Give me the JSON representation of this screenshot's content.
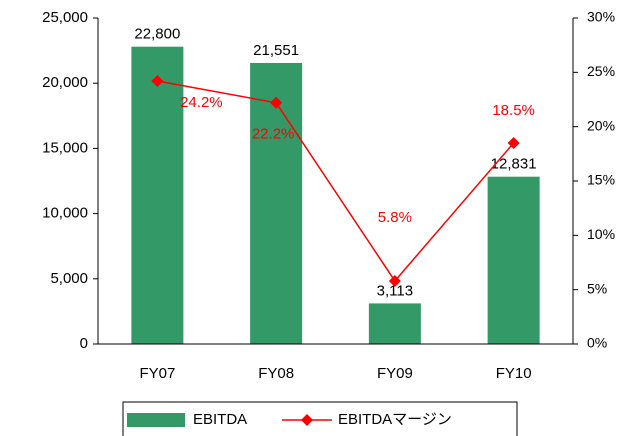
{
  "chart_data": {
    "type": "bar",
    "categories": [
      "FY07",
      "FY08",
      "FY09",
      "FY10"
    ],
    "series": [
      {
        "name": "EBITDA",
        "type": "bar",
        "color": "#339966",
        "values": [
          22800,
          21551,
          3113,
          12831
        ],
        "value_labels": [
          "22,800",
          "21,551",
          "3,113",
          "12,831"
        ]
      },
      {
        "name": "EBITDAマージン",
        "type": "line",
        "axis": "y2",
        "color": "#ff0000",
        "values": [
          24.2,
          22.2,
          5.8,
          18.5
        ],
        "value_labels": [
          "24.2%",
          "22.2%",
          "5.8%",
          "18.5%"
        ]
      }
    ],
    "ylim": [
      0,
      25000
    ],
    "yticks": [
      {
        "value": 0,
        "label": "0"
      },
      {
        "value": 5000,
        "label": "5,000"
      },
      {
        "value": 10000,
        "label": "10,000"
      },
      {
        "value": 15000,
        "label": "15,000"
      },
      {
        "value": 20000,
        "label": "20,000"
      },
      {
        "value": 25000,
        "label": "25,000"
      }
    ],
    "y2lim": [
      0,
      30
    ],
    "y2ticks": [
      {
        "value": 0,
        "label": "0%"
      },
      {
        "value": 5,
        "label": "5%"
      },
      {
        "value": 10,
        "label": "10%"
      },
      {
        "value": 15,
        "label": "15%"
      },
      {
        "value": 20,
        "label": "20%"
      },
      {
        "value": 25,
        "label": "25%"
      },
      {
        "value": 30,
        "label": "30%"
      }
    ],
    "legend": "bottom"
  }
}
